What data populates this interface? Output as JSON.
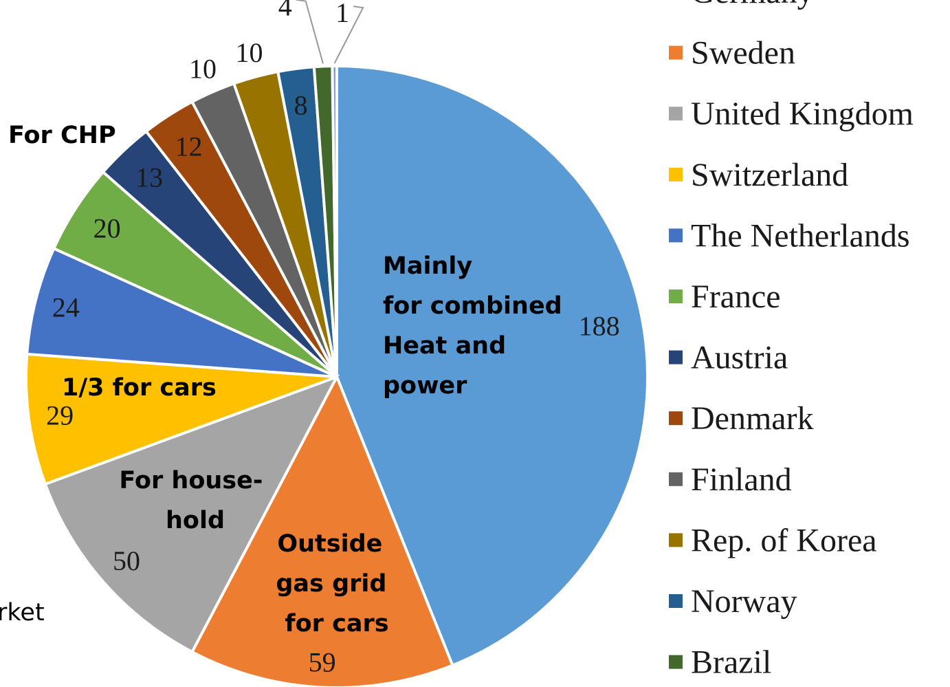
{
  "chart_data": {
    "type": "pie",
    "categories": [
      "Germany",
      "Sweden",
      "United Kingdom",
      "Switzerland",
      "The Netherlands",
      "France",
      "Austria",
      "Denmark",
      "Finland",
      "Rep. of Korea",
      "Norway",
      "Brazil",
      null
    ],
    "values": [
      188,
      59,
      50,
      29,
      24,
      20,
      13,
      12,
      10,
      10,
      8,
      4,
      1
    ],
    "colors": [
      "#5b9bd5",
      "#ed7d31",
      "#a5a5a5",
      "#ffc000",
      "#4472c4",
      "#70ad47",
      "#264478",
      "#9e480e",
      "#636363",
      "#997300",
      "#255e91",
      "#43682b",
      "#7f9fd8"
    ],
    "annotations": [
      [
        "Mainly",
        "for combined",
        "Heat and",
        "power"
      ],
      [
        "Outside",
        "gas grid",
        "for cars"
      ],
      [
        "For house-",
        "hold"
      ],
      [
        "1/3 for cars"
      ],
      [
        "For CHP"
      ],
      [
        "rket"
      ]
    ]
  }
}
